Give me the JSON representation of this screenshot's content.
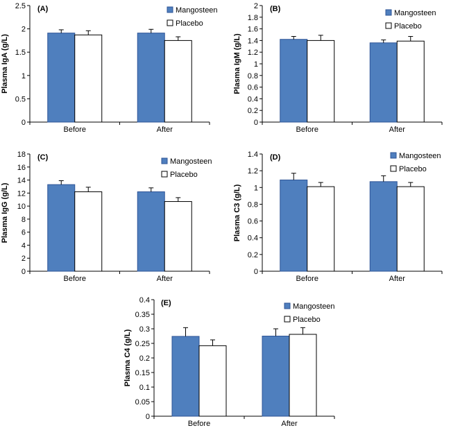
{
  "colors": {
    "mangosteen": "#4F7FBE",
    "mangosteen_edge": "#2F5597",
    "placebo": "#FFFFFF",
    "axis": "#000000"
  },
  "chart_data": [
    {
      "type": "bar",
      "panel": "(A)",
      "title": "",
      "ylabel": "Plasma IgA (g/L)",
      "xlabel": "",
      "categories": [
        "Before",
        "After"
      ],
      "ylim": [
        0,
        2.5
      ],
      "yticks": [
        "0",
        "0.5",
        "1",
        "1.5",
        "2",
        "2.5"
      ],
      "series": [
        {
          "name": "Mangosteen",
          "values": [
            1.91,
            1.91
          ],
          "errors": [
            0.07,
            0.08
          ]
        },
        {
          "name": "Placebo",
          "values": [
            1.87,
            1.75
          ],
          "errors": [
            0.09,
            0.08
          ]
        }
      ]
    },
    {
      "type": "bar",
      "panel": "(B)",
      "title": "",
      "ylabel": "Plasma IgM (g/L)",
      "xlabel": "",
      "categories": [
        "Before",
        "After"
      ],
      "ylim": [
        0,
        2
      ],
      "yticks": [
        "0",
        "0.2",
        "0.4",
        "0.6",
        "0.8",
        "1",
        "1.2",
        "1.4",
        "1.6",
        "1.8",
        "2"
      ],
      "series": [
        {
          "name": "Mangosteen",
          "values": [
            1.42,
            1.36
          ],
          "errors": [
            0.05,
            0.05
          ]
        },
        {
          "name": "Placebo",
          "values": [
            1.4,
            1.39
          ],
          "errors": [
            0.09,
            0.08
          ]
        }
      ]
    },
    {
      "type": "bar",
      "panel": "(C)",
      "title": "",
      "ylabel": "Plasma IgG (g/L)",
      "xlabel": "",
      "categories": [
        "Before",
        "After"
      ],
      "ylim": [
        0,
        18
      ],
      "yticks": [
        "0",
        "2",
        "4",
        "6",
        "8",
        "10",
        "12",
        "14",
        "16",
        "18"
      ],
      "series": [
        {
          "name": "Mangosteen",
          "values": [
            13.3,
            12.2
          ],
          "errors": [
            0.6,
            0.6
          ]
        },
        {
          "name": "Placebo",
          "values": [
            12.2,
            10.7
          ],
          "errors": [
            0.7,
            0.6
          ]
        }
      ]
    },
    {
      "type": "bar",
      "panel": "(D)",
      "title": "",
      "ylabel": "Plasma C3 (g/L)",
      "xlabel": "",
      "categories": [
        "Before",
        "After"
      ],
      "ylim": [
        0,
        1.4
      ],
      "yticks": [
        "0",
        "0.2",
        "0.4",
        "0.6",
        "0.8",
        "1",
        "1.2",
        "1.4"
      ],
      "series": [
        {
          "name": "Mangosteen",
          "values": [
            1.09,
            1.07
          ],
          "errors": [
            0.08,
            0.07
          ]
        },
        {
          "name": "Placebo",
          "values": [
            1.01,
            1.01
          ],
          "errors": [
            0.05,
            0.05
          ]
        }
      ]
    },
    {
      "type": "bar",
      "panel": "(E)",
      "title": "",
      "ylabel": "Plasma C4 (g/L)",
      "xlabel": "",
      "categories": [
        "Before",
        "After"
      ],
      "ylim": [
        0,
        0.4
      ],
      "yticks": [
        "0",
        "0.05",
        "0.1",
        "0.15",
        "0.2",
        "0.25",
        "0.3",
        "0.35",
        "0.4"
      ],
      "series": [
        {
          "name": "Mangosteen",
          "values": [
            0.274,
            0.275
          ],
          "errors": [
            0.03,
            0.025
          ]
        },
        {
          "name": "Placebo",
          "values": [
            0.242,
            0.281
          ],
          "errors": [
            0.02,
            0.023
          ]
        }
      ]
    }
  ]
}
